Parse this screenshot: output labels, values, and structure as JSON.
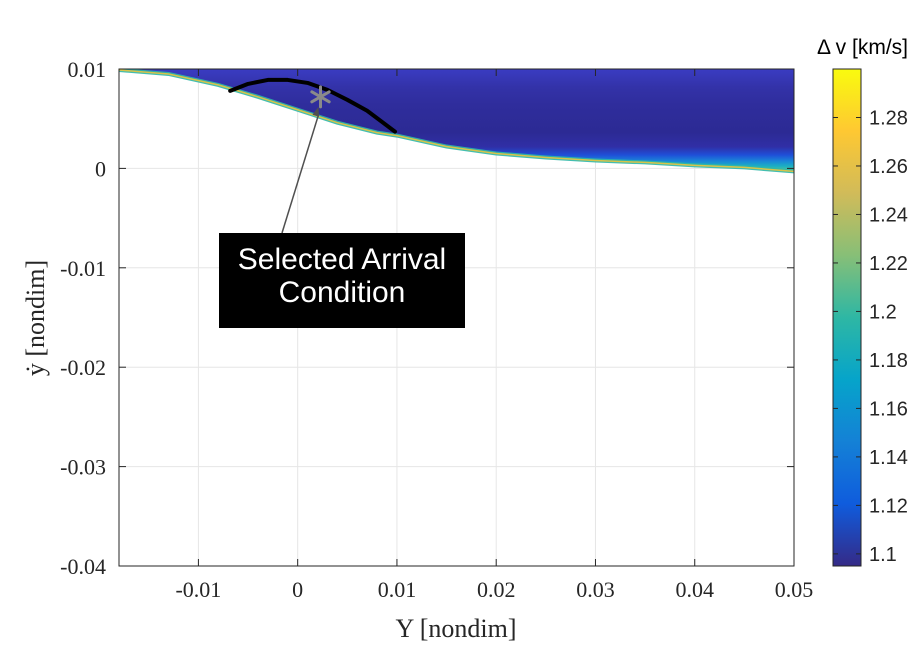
{
  "chart_data": {
    "type": "heatmap",
    "title": "",
    "xlabel": "Y [nondim]",
    "ylabel": "ẏ [nondim]",
    "xlim": [
      -0.018,
      0.05
    ],
    "ylim": [
      -0.04,
      0.01
    ],
    "x_ticks": [
      -0.01,
      0,
      0.01,
      0.02,
      0.03,
      0.04,
      0.05
    ],
    "x_tick_labels": [
      "-0.01",
      "0",
      "0.01",
      "0.02",
      "0.03",
      "0.04",
      "0.05"
    ],
    "y_ticks": [
      0.01,
      0,
      -0.01,
      -0.02,
      -0.03,
      -0.04
    ],
    "y_tick_labels": [
      "0.01",
      "0",
      "-0.01",
      "-0.02",
      "-0.03",
      "-0.04"
    ],
    "grid": true,
    "colormap": "parula",
    "colorbar": {
      "title": "Δ v [km/s]",
      "range": [
        1.095,
        1.3
      ],
      "ticks": [
        1.1,
        1.12,
        1.14,
        1.16,
        1.18,
        1.2,
        1.22,
        1.24,
        1.26,
        1.28
      ],
      "tick_labels": [
        "1.1",
        "1.12",
        "1.14",
        "1.16",
        "1.18",
        "1.2",
        "1.22",
        "1.24",
        "1.26",
        "1.28"
      ],
      "colors": [
        "#352a87",
        "#0f5cdd",
        "#1481d6",
        "#06a4ca",
        "#2eb7a4",
        "#87bf77",
        "#d1bb59",
        "#fec832",
        "#f9fb0e"
      ]
    },
    "region_lower_boundary": {
      "x": [
        -0.018,
        -0.013,
        -0.008,
        -0.004,
        0.0,
        0.004,
        0.008,
        0.01,
        0.015,
        0.02,
        0.025,
        0.03,
        0.035,
        0.04,
        0.045,
        0.05
      ],
      "y": [
        0.0099,
        0.0095,
        0.0084,
        0.0072,
        0.0059,
        0.0046,
        0.0036,
        0.0033,
        0.0022,
        0.0015,
        0.0011,
        0.0008,
        0.0006,
        0.0003,
        0.0001,
        -0.0003
      ]
    },
    "region_upper_bound": 0.01,
    "series": [
      {
        "type": "line",
        "color": "#000000",
        "x": [
          -0.0068,
          -0.005,
          -0.003,
          -0.001,
          0.001,
          0.003,
          0.005,
          0.007,
          0.0098
        ],
        "y": [
          0.0078,
          0.0085,
          0.0089,
          0.0089,
          0.0086,
          0.0079,
          0.0069,
          0.0058,
          0.0037
        ]
      }
    ],
    "marker": {
      "symbol": "*",
      "color": "#8a8a8a",
      "x": 0.0023,
      "y": 0.0072
    },
    "annotation": {
      "lines": [
        "Selected Arrival",
        "Condition"
      ],
      "arrow_target": {
        "x": 0.0021,
        "y": 0.0062
      }
    }
  }
}
